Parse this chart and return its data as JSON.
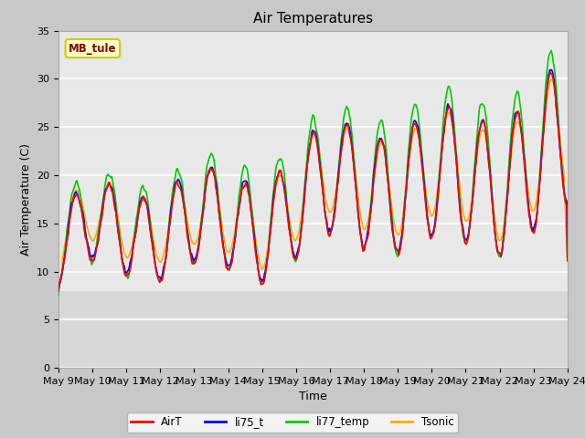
{
  "title": "Air Temperatures",
  "xlabel": "Time",
  "ylabel": "Air Temperature (C)",
  "site_label": "MB_tule",
  "ylim": [
    0,
    35
  ],
  "y_ticks": [
    0,
    5,
    10,
    15,
    20,
    25,
    30,
    35
  ],
  "x_tick_labels": [
    "May 9",
    "May 10",
    "May 11",
    "May 12",
    "May 13",
    "May 14",
    "May 15",
    "May 16",
    "May 17",
    "May 18",
    "May 19",
    "May 20",
    "May 21",
    "May 22",
    "May 23",
    "May 24"
  ],
  "colors": {
    "AirT": "#ff0000",
    "li75_t": "#0000ff",
    "li77_temp": "#00cc00",
    "Tsonic": "#ffaa00"
  },
  "lw": 1.2,
  "fig_bg": "#c8c8c8",
  "ax_bg": "#e8e8e8",
  "grid_color": "#ffffff",
  "site_box_fc": "#ffffcc",
  "site_box_ec": "#cccc00",
  "site_text_color": "#880000"
}
